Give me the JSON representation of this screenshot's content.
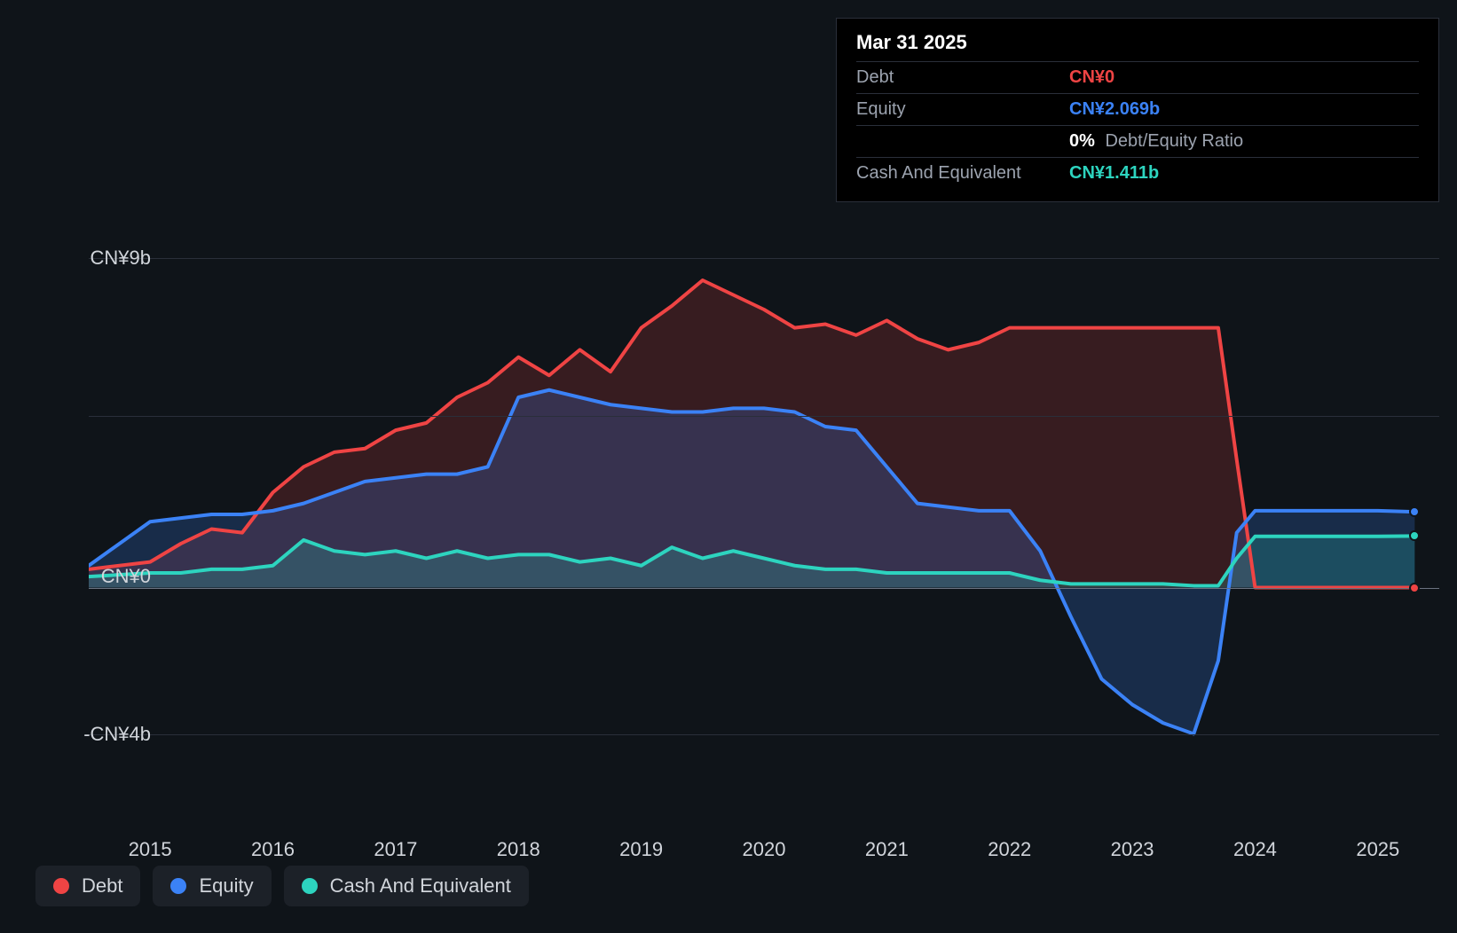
{
  "chart": {
    "type": "area",
    "background_color": "#0f1419",
    "grid_color": "#2a2f3a",
    "zero_line_color": "#6b7280",
    "text_color": "#d1d5db",
    "label_fontsize": 22,
    "line_width": 4,
    "ylim": [
      -6,
      10
    ],
    "ytick_labels": [
      {
        "value": 9,
        "label": "CN¥9b"
      },
      {
        "value": 0,
        "label": "CN¥0"
      },
      {
        "value": -4,
        "label": "-CN¥4b"
      }
    ],
    "y_gridlines": [
      9,
      4.7,
      0,
      -4
    ],
    "xlim": [
      2014.5,
      2025.5
    ],
    "xtick_labels": [
      "2015",
      "2016",
      "2017",
      "2018",
      "2019",
      "2020",
      "2021",
      "2022",
      "2023",
      "2024",
      "2025"
    ],
    "series": [
      {
        "name": "Debt",
        "color": "#ef4444",
        "fill_opacity": 0.18,
        "end_dot": true,
        "points": [
          [
            2014.5,
            0.5
          ],
          [
            2015.0,
            0.7
          ],
          [
            2015.25,
            1.2
          ],
          [
            2015.5,
            1.6
          ],
          [
            2015.75,
            1.5
          ],
          [
            2016.0,
            2.6
          ],
          [
            2016.25,
            3.3
          ],
          [
            2016.5,
            3.7
          ],
          [
            2016.75,
            3.8
          ],
          [
            2017.0,
            4.3
          ],
          [
            2017.25,
            4.5
          ],
          [
            2017.5,
            5.2
          ],
          [
            2017.75,
            5.6
          ],
          [
            2018.0,
            6.3
          ],
          [
            2018.25,
            5.8
          ],
          [
            2018.5,
            6.5
          ],
          [
            2018.75,
            5.9
          ],
          [
            2019.0,
            7.1
          ],
          [
            2019.25,
            7.7
          ],
          [
            2019.5,
            8.4
          ],
          [
            2019.75,
            8.0
          ],
          [
            2020.0,
            7.6
          ],
          [
            2020.25,
            7.1
          ],
          [
            2020.5,
            7.2
          ],
          [
            2020.75,
            6.9
          ],
          [
            2021.0,
            7.3
          ],
          [
            2021.25,
            6.8
          ],
          [
            2021.5,
            6.5
          ],
          [
            2021.75,
            6.7
          ],
          [
            2022.0,
            7.1
          ],
          [
            2022.25,
            7.1
          ],
          [
            2022.5,
            7.1
          ],
          [
            2022.75,
            7.1
          ],
          [
            2023.0,
            7.1
          ],
          [
            2023.25,
            7.1
          ],
          [
            2023.5,
            7.1
          ],
          [
            2023.7,
            7.1
          ],
          [
            2023.85,
            3.5
          ],
          [
            2024.0,
            0.0
          ],
          [
            2025.0,
            0.0
          ],
          [
            2025.3,
            0.0
          ]
        ]
      },
      {
        "name": "Equity",
        "color": "#3b82f6",
        "fill_opacity": 0.22,
        "end_dot": true,
        "points": [
          [
            2014.5,
            0.6
          ],
          [
            2015.0,
            1.8
          ],
          [
            2015.25,
            1.9
          ],
          [
            2015.5,
            2.0
          ],
          [
            2015.75,
            2.0
          ],
          [
            2016.0,
            2.1
          ],
          [
            2016.25,
            2.3
          ],
          [
            2016.5,
            2.6
          ],
          [
            2016.75,
            2.9
          ],
          [
            2017.0,
            3.0
          ],
          [
            2017.25,
            3.1
          ],
          [
            2017.5,
            3.1
          ],
          [
            2017.75,
            3.3
          ],
          [
            2018.0,
            5.2
          ],
          [
            2018.25,
            5.4
          ],
          [
            2018.5,
            5.2
          ],
          [
            2018.75,
            5.0
          ],
          [
            2019.0,
            4.9
          ],
          [
            2019.25,
            4.8
          ],
          [
            2019.5,
            4.8
          ],
          [
            2019.75,
            4.9
          ],
          [
            2020.0,
            4.9
          ],
          [
            2020.25,
            4.8
          ],
          [
            2020.5,
            4.4
          ],
          [
            2020.75,
            4.3
          ],
          [
            2021.0,
            3.3
          ],
          [
            2021.25,
            2.3
          ],
          [
            2021.5,
            2.2
          ],
          [
            2021.75,
            2.1
          ],
          [
            2022.0,
            2.1
          ],
          [
            2022.25,
            1.0
          ],
          [
            2022.5,
            -0.8
          ],
          [
            2022.75,
            -2.5
          ],
          [
            2023.0,
            -3.2
          ],
          [
            2023.25,
            -3.7
          ],
          [
            2023.5,
            -4.0
          ],
          [
            2023.7,
            -2.0
          ],
          [
            2023.85,
            1.5
          ],
          [
            2024.0,
            2.1
          ],
          [
            2025.0,
            2.1
          ],
          [
            2025.3,
            2.07
          ]
        ]
      },
      {
        "name": "Cash And Equivalent",
        "color": "#2dd4bf",
        "fill_opacity": 0.2,
        "end_dot": true,
        "points": [
          [
            2014.5,
            0.3
          ],
          [
            2015.0,
            0.4
          ],
          [
            2015.25,
            0.4
          ],
          [
            2015.5,
            0.5
          ],
          [
            2015.75,
            0.5
          ],
          [
            2016.0,
            0.6
          ],
          [
            2016.25,
            1.3
          ],
          [
            2016.5,
            1.0
          ],
          [
            2016.75,
            0.9
          ],
          [
            2017.0,
            1.0
          ],
          [
            2017.25,
            0.8
          ],
          [
            2017.5,
            1.0
          ],
          [
            2017.75,
            0.8
          ],
          [
            2018.0,
            0.9
          ],
          [
            2018.25,
            0.9
          ],
          [
            2018.5,
            0.7
          ],
          [
            2018.75,
            0.8
          ],
          [
            2019.0,
            0.6
          ],
          [
            2019.25,
            1.1
          ],
          [
            2019.5,
            0.8
          ],
          [
            2019.75,
            1.0
          ],
          [
            2020.0,
            0.8
          ],
          [
            2020.25,
            0.6
          ],
          [
            2020.5,
            0.5
          ],
          [
            2020.75,
            0.5
          ],
          [
            2021.0,
            0.4
          ],
          [
            2021.25,
            0.4
          ],
          [
            2021.5,
            0.4
          ],
          [
            2021.75,
            0.4
          ],
          [
            2022.0,
            0.4
          ],
          [
            2022.25,
            0.2
          ],
          [
            2022.5,
            0.1
          ],
          [
            2022.75,
            0.1
          ],
          [
            2023.0,
            0.1
          ],
          [
            2023.25,
            0.1
          ],
          [
            2023.5,
            0.05
          ],
          [
            2023.7,
            0.05
          ],
          [
            2023.85,
            0.8
          ],
          [
            2024.0,
            1.4
          ],
          [
            2025.0,
            1.4
          ],
          [
            2025.3,
            1.41
          ]
        ]
      }
    ]
  },
  "tooltip": {
    "date": "Mar 31 2025",
    "rows": [
      {
        "label": "Debt",
        "value": "CN¥0",
        "color": "#ef4444"
      },
      {
        "label": "Equity",
        "value": "CN¥2.069b",
        "color": "#3b82f6"
      },
      {
        "label": "",
        "value": "0%",
        "suffix": "Debt/Equity Ratio",
        "color": "#ffffff"
      },
      {
        "label": "Cash And Equivalent",
        "value": "CN¥1.411b",
        "color": "#2dd4bf"
      }
    ]
  },
  "legend": {
    "items": [
      {
        "label": "Debt",
        "color": "#ef4444"
      },
      {
        "label": "Equity",
        "color": "#3b82f6"
      },
      {
        "label": "Cash And Equivalent",
        "color": "#2dd4bf"
      }
    ]
  }
}
